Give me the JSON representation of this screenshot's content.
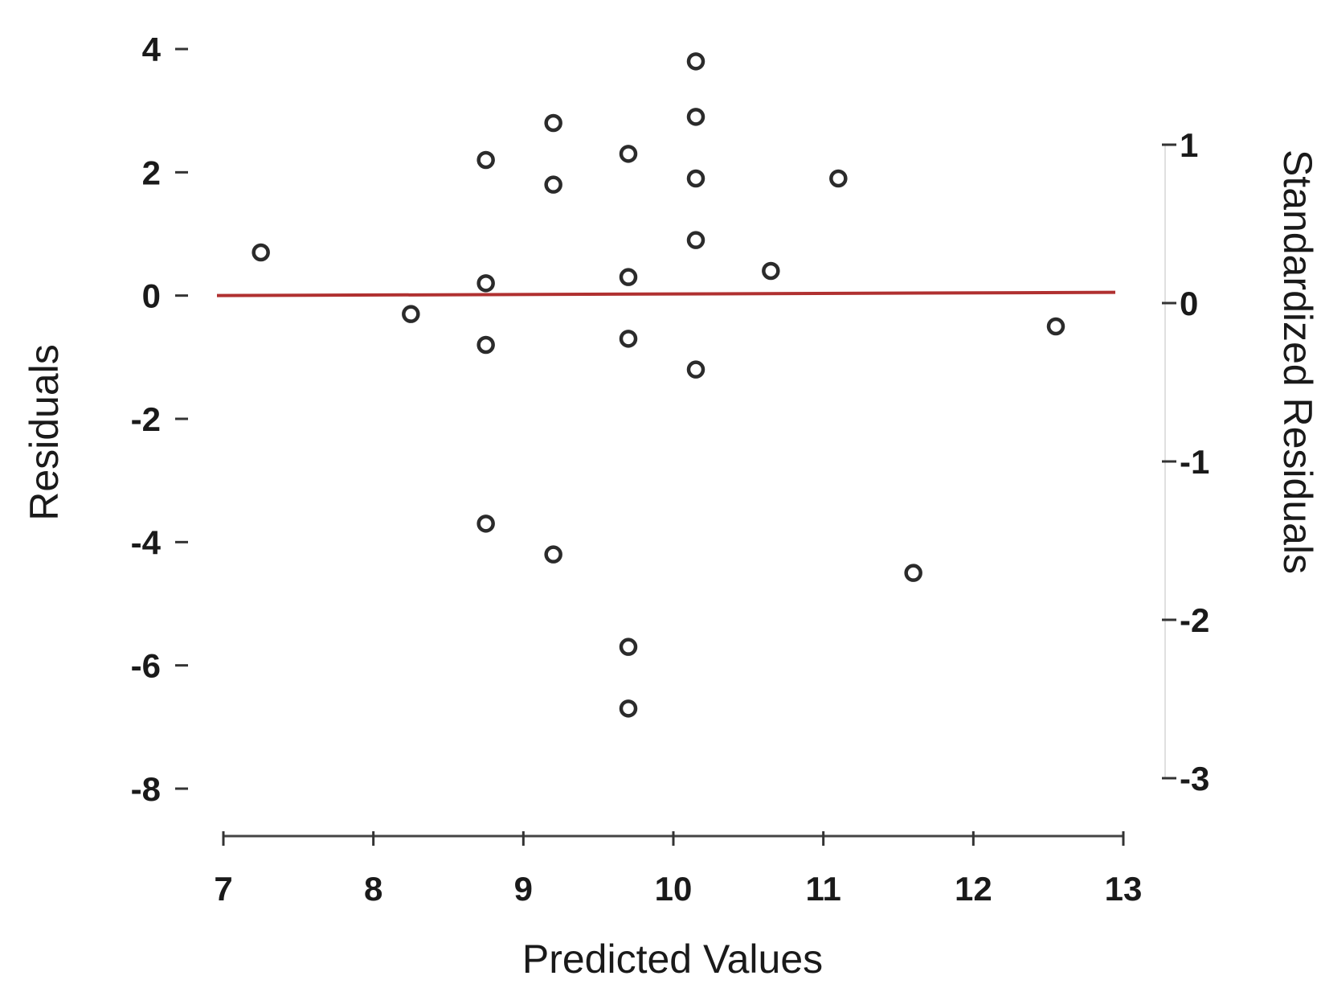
{
  "chart_data": {
    "type": "scatter",
    "title": "",
    "xlabel": "Predicted Values",
    "ylabel": "Residuals",
    "y2label": "Standardized Residuals",
    "xlim": [
      7,
      13
    ],
    "ylim": [
      -8,
      4
    ],
    "y2lim": [
      -3,
      1
    ],
    "xticks": [
      "7",
      "8",
      "9",
      "10",
      "11",
      "12",
      "13"
    ],
    "yticks": [
      "4",
      "2",
      "0",
      "-2",
      "-4",
      "-6",
      "-8"
    ],
    "y2ticks": [
      "1",
      "0",
      "-1",
      "-2",
      "-3"
    ],
    "grid": false,
    "reference_line": {
      "y": 0,
      "color": "#b03030"
    },
    "marker_color": "#2b2b2b",
    "series": [
      {
        "points": [
          {
            "x": 7.25,
            "y": 0.7
          },
          {
            "x": 8.25,
            "y": -0.3
          },
          {
            "x": 8.75,
            "y": 2.2
          },
          {
            "x": 8.75,
            "y": 0.2
          },
          {
            "x": 8.75,
            "y": -0.8
          },
          {
            "x": 8.75,
            "y": -3.7
          },
          {
            "x": 9.2,
            "y": 2.8
          },
          {
            "x": 9.2,
            "y": 1.8
          },
          {
            "x": 9.2,
            "y": -4.2
          },
          {
            "x": 9.7,
            "y": 2.3
          },
          {
            "x": 9.7,
            "y": 0.3
          },
          {
            "x": 9.7,
            "y": -0.7
          },
          {
            "x": 9.7,
            "y": -5.7
          },
          {
            "x": 9.7,
            "y": -6.7
          },
          {
            "x": 10.15,
            "y": 3.8
          },
          {
            "x": 10.15,
            "y": 2.9
          },
          {
            "x": 10.15,
            "y": 1.9
          },
          {
            "x": 10.15,
            "y": 0.9
          },
          {
            "x": 10.15,
            "y": -1.2
          },
          {
            "x": 10.65,
            "y": 0.4
          },
          {
            "x": 11.1,
            "y": 1.9
          },
          {
            "x": 11.6,
            "y": -4.5
          },
          {
            "x": 12.55,
            "y": -0.5
          }
        ]
      }
    ]
  }
}
